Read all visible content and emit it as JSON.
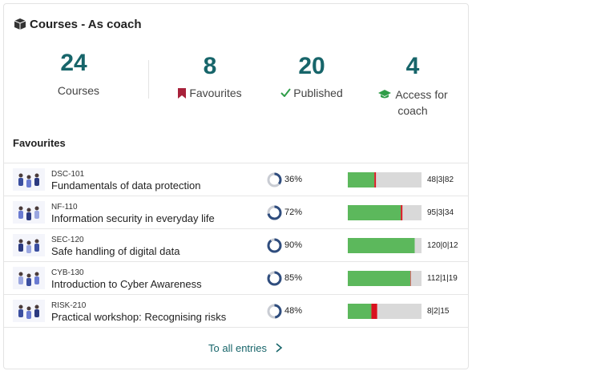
{
  "header": {
    "title": "Courses - As coach"
  },
  "stats": [
    {
      "value": 24,
      "label": "Courses"
    },
    {
      "value": 8,
      "label": "Favourites"
    },
    {
      "value": 20,
      "label": "Published"
    },
    {
      "value": 4,
      "label": "Access for coach"
    }
  ],
  "favourites": {
    "title": "Favourites",
    "items": [
      {
        "code": "DSC-101",
        "title": "Fundamentals of data protection",
        "progress": 36,
        "progress_label": "36%",
        "completed": 48,
        "in_progress": 3,
        "not_started": 82,
        "counts_label": "48|3|82"
      },
      {
        "code": "NF-110",
        "title": "Information security in everyday life",
        "progress": 72,
        "progress_label": "72%",
        "completed": 95,
        "in_progress": 3,
        "not_started": 34,
        "counts_label": "95|3|34"
      },
      {
        "code": "SEC-120",
        "title": "Safe handling of digital data",
        "progress": 90,
        "progress_label": "90%",
        "completed": 120,
        "in_progress": 0,
        "not_started": 12,
        "counts_label": "120|0|12"
      },
      {
        "code": "CYB-130",
        "title": "Introduction to Cyber Awareness",
        "progress": 85,
        "progress_label": "85%",
        "completed": 112,
        "in_progress": 1,
        "not_started": 19,
        "counts_label": "112|1|19"
      },
      {
        "code": "RISK-210",
        "title": "Practical workshop: Recognising risks",
        "progress": 48,
        "progress_label": "48%",
        "completed": 8,
        "in_progress": 2,
        "not_started": 15,
        "counts_label": "8|2|15"
      }
    ]
  },
  "footer": {
    "link": "To all entries"
  }
}
